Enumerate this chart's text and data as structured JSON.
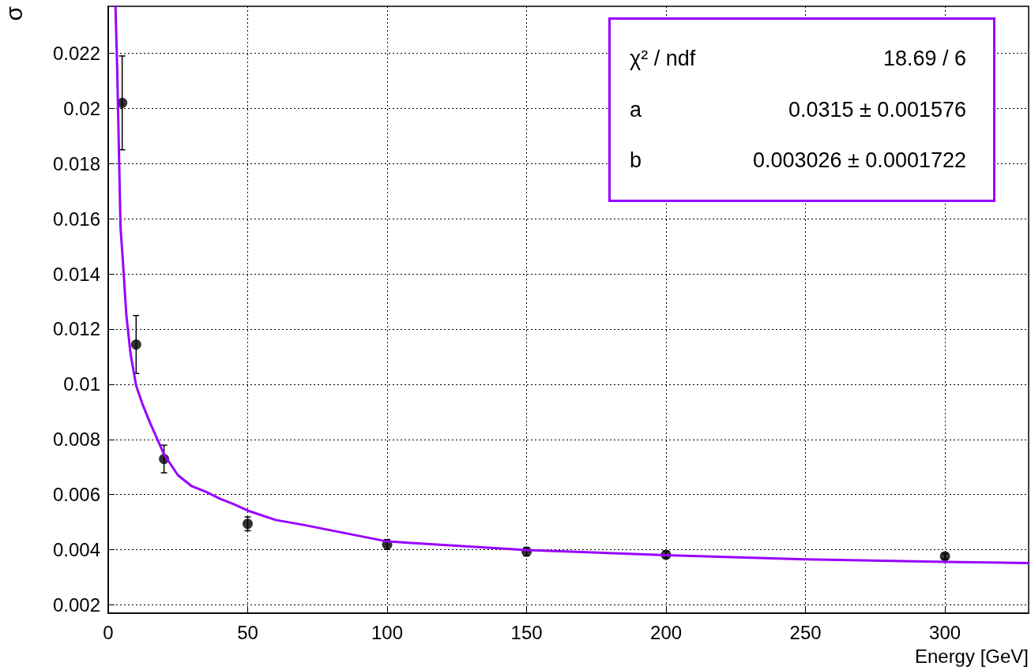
{
  "chart_data": {
    "type": "scatter",
    "xlabel": "Energy [GeV]",
    "ylabel": "σ",
    "x": [
      5,
      10,
      20,
      50,
      100,
      150,
      200,
      300
    ],
    "series": [
      {
        "color": "#000000",
        "marker": "circle",
        "values": [
          0.0202,
          0.01144,
          0.00729,
          0.00494,
          0.00419,
          0.00393,
          0.00382,
          0.00376
        ],
        "errors": [
          0.0017,
          0.00105,
          0.0005,
          0.00025,
          0.00018,
          0.00015,
          0.00013,
          0.0001
        ]
      },
      {
        "type": "line",
        "color": "#9900ff",
        "marker": "none",
        "line_style": "solid",
        "x": [
          2.6,
          2.9,
          3.2,
          3.7,
          4.4,
          5.2,
          6.5,
          8,
          10,
          12.2,
          15,
          20,
          25,
          30,
          35,
          40,
          45,
          50,
          60,
          70,
          80,
          100,
          150,
          200,
          250,
          300,
          330
        ],
        "values": [
          0.0237,
          0.0226,
          0.0215,
          0.0191,
          0.0157,
          0.01454,
          0.0125,
          0.0111,
          0.00995,
          0.0093,
          0.0086,
          0.00746,
          0.0067,
          0.0063,
          0.0061,
          0.00585,
          0.00565,
          0.00542,
          0.00508,
          0.0049,
          0.0047,
          0.0043,
          0.00399,
          0.0038,
          0.00365,
          0.00356,
          0.00352
        ]
      }
    ],
    "xlim": [
      0,
      330
    ],
    "xticks": [
      0,
      50,
      100,
      150,
      200,
      250,
      300
    ],
    "ylim": [
      0.0017,
      0.0237
    ],
    "yticks": [
      0.002,
      0.004,
      0.006,
      0.008,
      0.01,
      0.012,
      0.014,
      0.016,
      0.018,
      0.02,
      0.022
    ],
    "grid": true,
    "annotations": [
      "χ² / ndf",
      "18.69 / 6",
      "a",
      "0.0315 ± 0.001576",
      "b",
      "0.003026 ± 0.0001722"
    ]
  }
}
